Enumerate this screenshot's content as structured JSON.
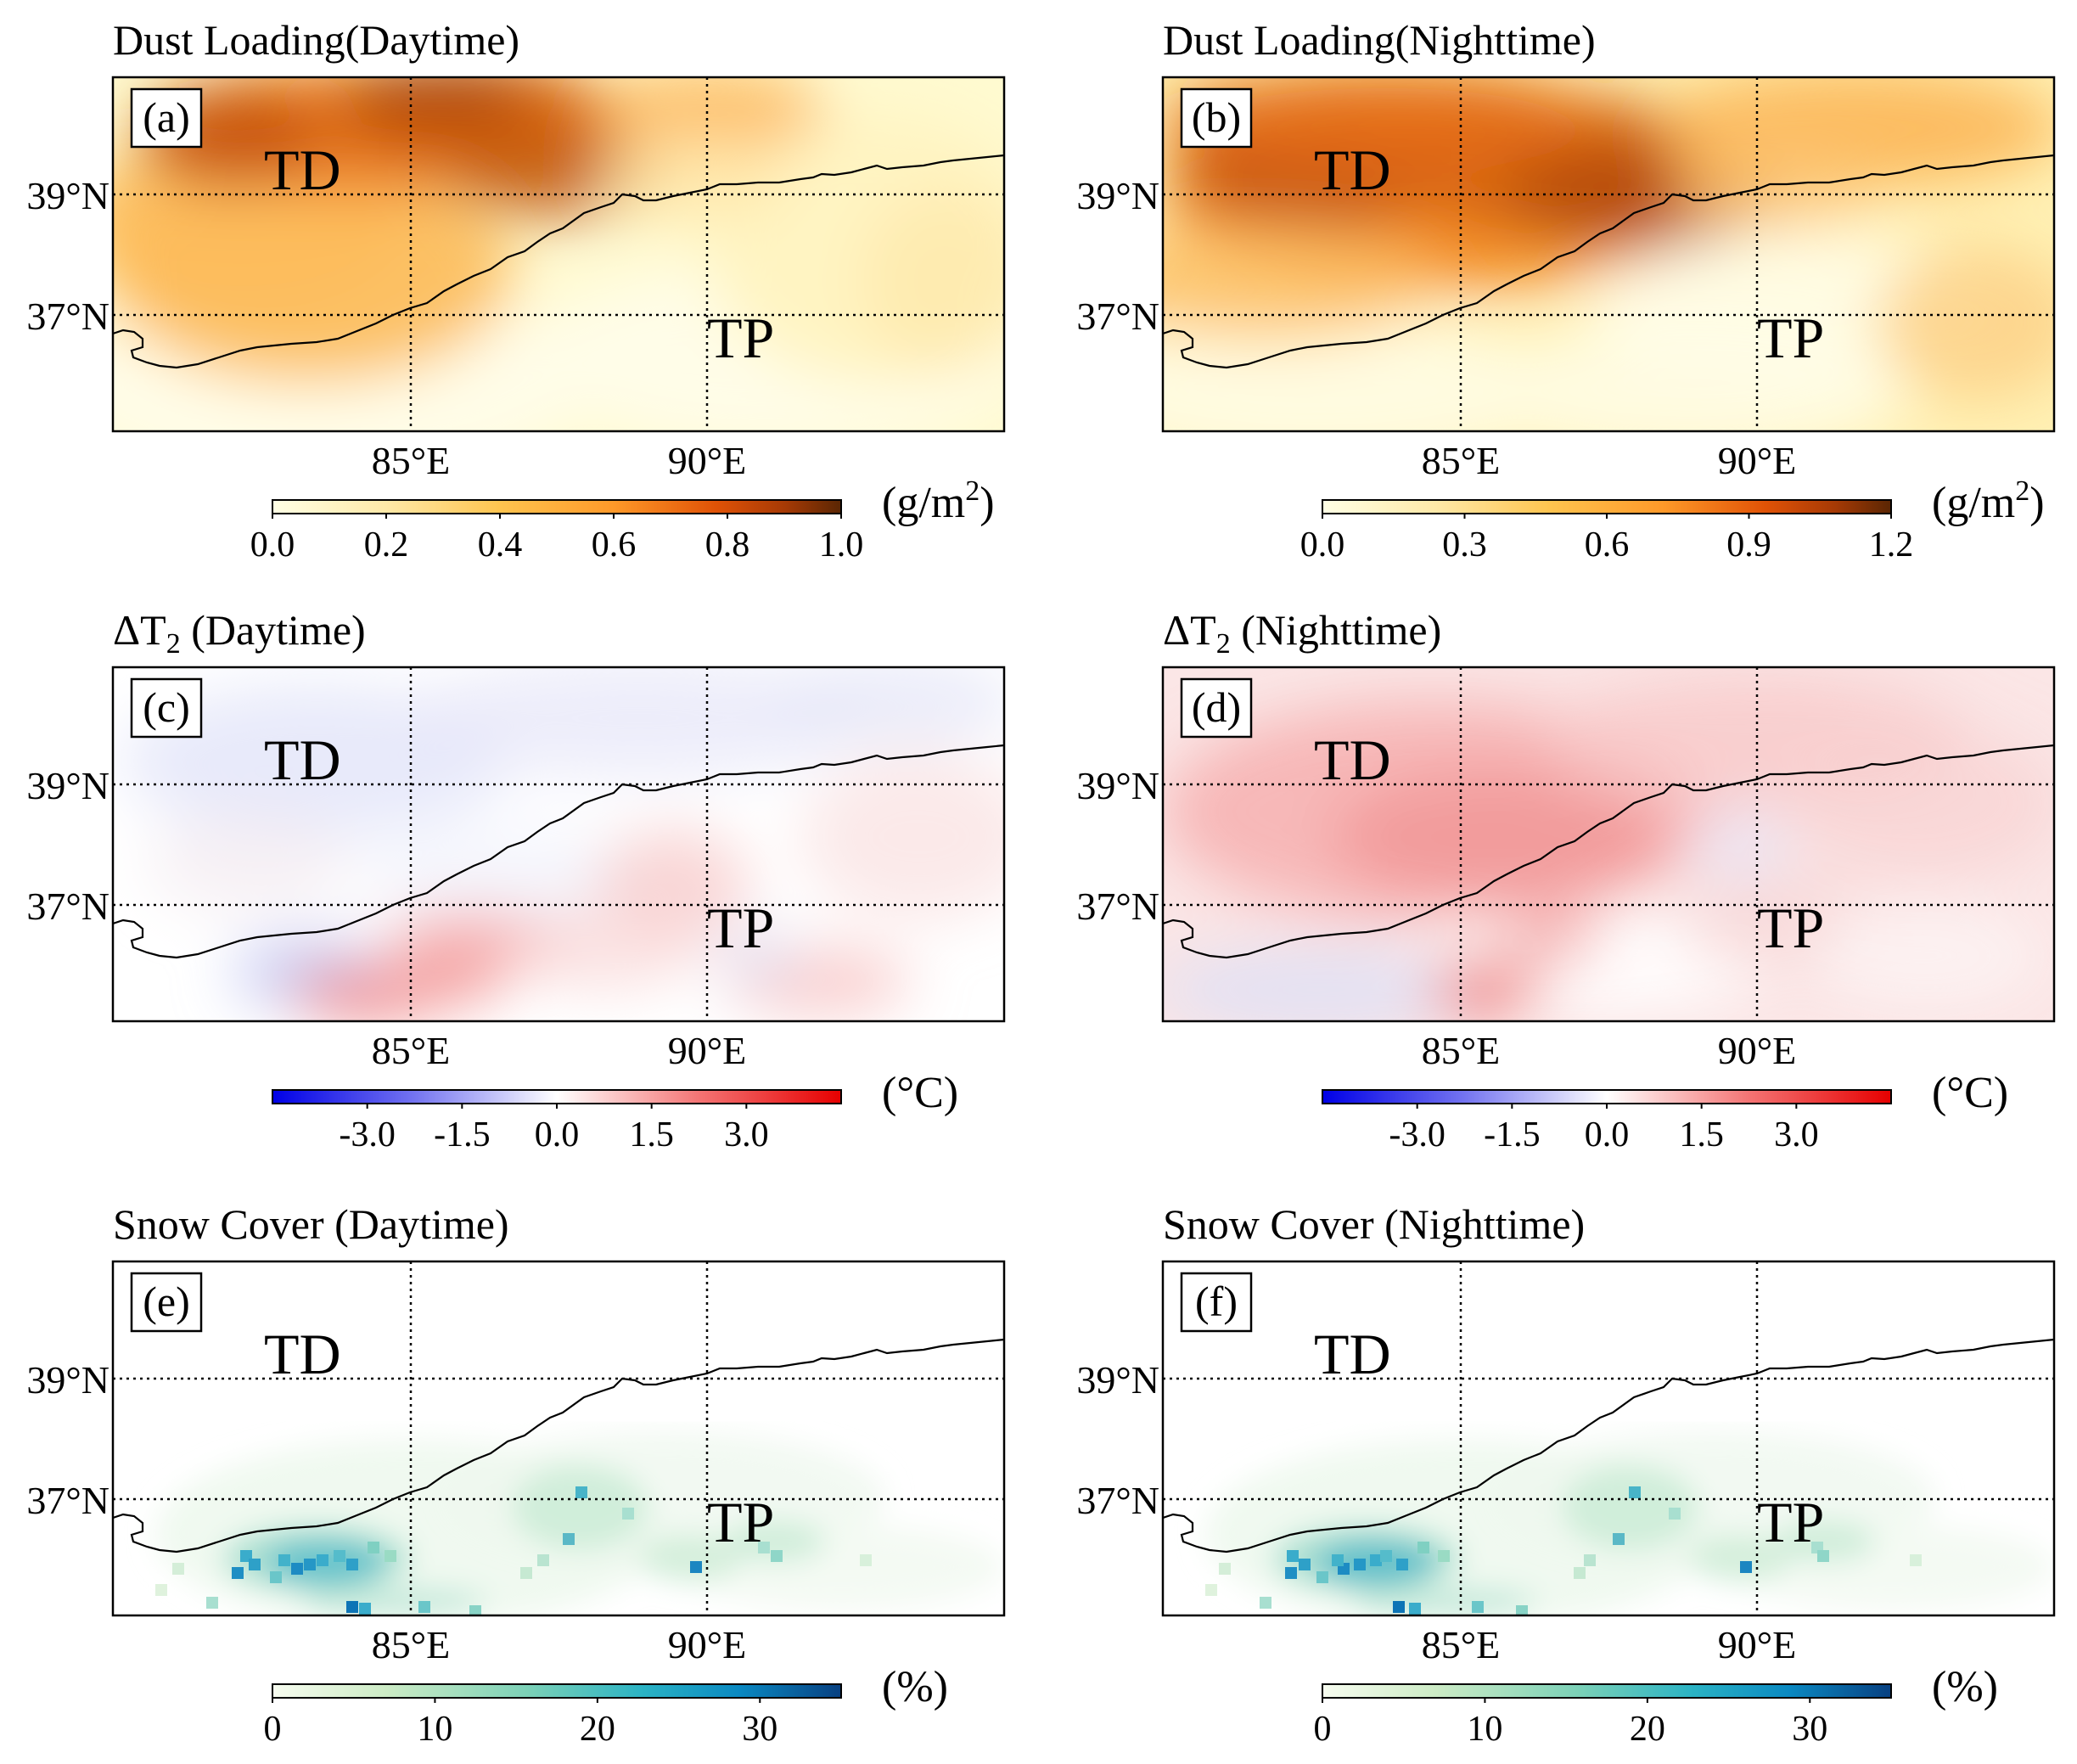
{
  "figure": {
    "panels": [
      {
        "letter": "(a)",
        "title": "Dust Loading(Daytime)",
        "field": "dust",
        "variant": "day",
        "colorbar": {
          "ticks": [
            "0.0",
            "0.2",
            "0.4",
            "0.6",
            "0.8",
            "1.0"
          ],
          "unit_base": "(g/m",
          "unit_sup": "2",
          "unit_end": ")",
          "scheme": "YlOrBr",
          "range": [
            0,
            1.0
          ]
        }
      },
      {
        "letter": "(b)",
        "title": "Dust Loading(Nighttime)",
        "field": "dust",
        "variant": "night",
        "colorbar": {
          "ticks": [
            "0.0",
            "0.3",
            "0.6",
            "0.9",
            "1.2"
          ],
          "unit_base": "(g/m",
          "unit_sup": "2",
          "unit_end": ")",
          "scheme": "YlOrBr",
          "range": [
            0,
            1.2
          ]
        }
      },
      {
        "letter": "(c)",
        "title_prefix": "ΔT",
        "title_sub": "2",
        "title_rest": " (Daytime)",
        "field": "temp",
        "variant": "day",
        "colorbar": {
          "ticks": [
            "-3.0",
            "-1.5",
            "0.0",
            "1.5",
            "3.0"
          ],
          "unit": "(°C)",
          "scheme": "bwr",
          "range": [
            -4.5,
            4.5
          ]
        }
      },
      {
        "letter": "(d)",
        "title_prefix": "ΔT",
        "title_sub": "2",
        "title_rest": " (Nighttime)",
        "field": "temp",
        "variant": "night",
        "colorbar": {
          "ticks": [
            "-3.0",
            "-1.5",
            "0.0",
            "1.5",
            "3.0"
          ],
          "unit": "(°C)",
          "scheme": "bwr",
          "range": [
            -4.5,
            4.5
          ]
        }
      },
      {
        "letter": "(e)",
        "title": "Snow Cover (Daytime)",
        "field": "snow",
        "variant": "day",
        "colorbar": {
          "ticks": [
            "0",
            "10",
            "20",
            "30"
          ],
          "unit": "(%)",
          "scheme": "GnBu",
          "range": [
            0,
            35
          ]
        }
      },
      {
        "letter": "(f)",
        "title": "Snow Cover (Nighttime)",
        "field": "snow",
        "variant": "night",
        "colorbar": {
          "ticks": [
            "0",
            "10",
            "20",
            "30"
          ],
          "unit": "(%)",
          "scheme": "GnBu",
          "range": [
            0,
            35
          ]
        }
      }
    ],
    "lat_labels": [
      "39°N",
      "37°N"
    ],
    "lon_labels": [
      "85°E",
      "90°E"
    ],
    "region_labels": {
      "td": "TD",
      "tp": "TP"
    },
    "colors": {
      "frame": "#000000",
      "grid": "#000000"
    }
  }
}
